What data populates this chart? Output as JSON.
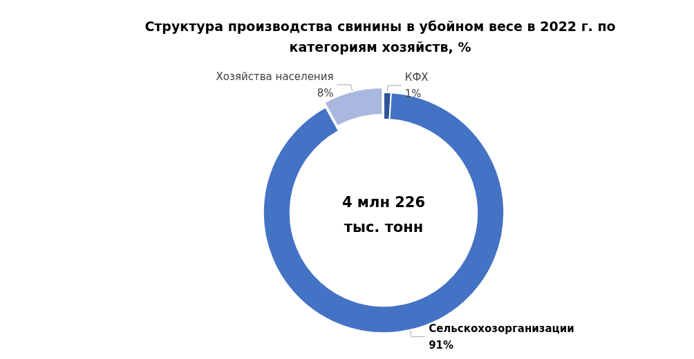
{
  "chart_data": {
    "type": "donut",
    "title": "Структура производства свинины в убойном весе в 2022 г. по\nкатегориям хозяйств, %",
    "categories": [
      "КФХ",
      "Сельскохозорганизации",
      "Хозяйства населения"
    ],
    "values": [
      1,
      91,
      8
    ],
    "colors": [
      "#2f5597",
      "#4472c4",
      "#a9b8de"
    ],
    "annotations": [
      "4 млн 226\nтыс. тонн"
    ],
    "value_labels": [
      "1%",
      "91%",
      "8%"
    ],
    "legend": false
  }
}
